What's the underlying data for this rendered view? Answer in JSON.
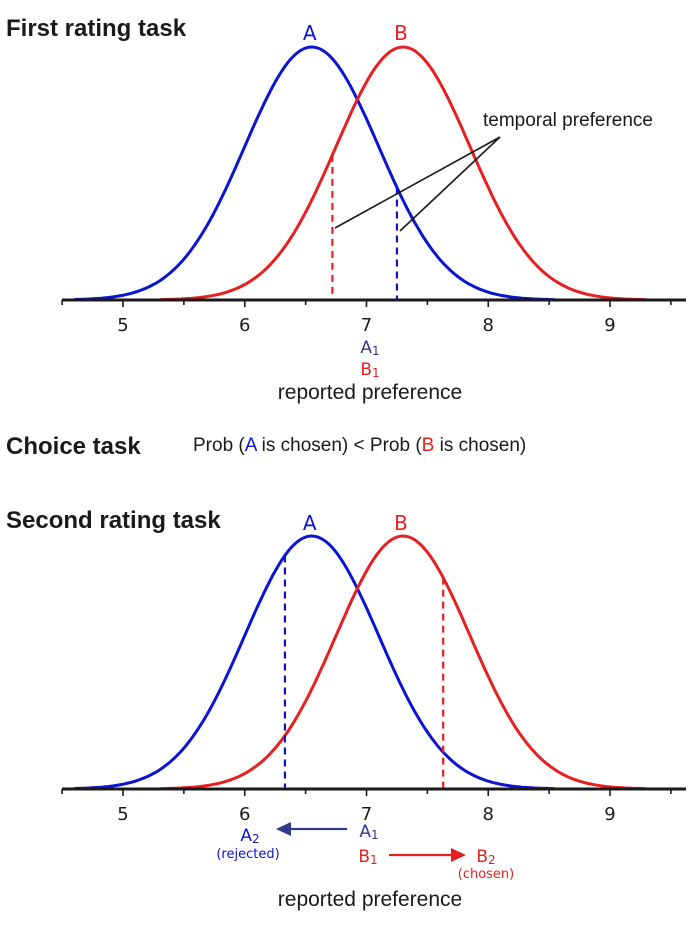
{
  "colors": {
    "a": "#0a14d2",
    "b": "#e62020",
    "a_dark": "#2e3a8c",
    "axis": "#1a1a1a"
  },
  "panels": [
    {
      "title": "First rating task",
      "curve_a": {
        "label": "A",
        "mean": 6.55,
        "sd": 0.55
      },
      "curve_b": {
        "label": "B",
        "mean": 7.3,
        "sd": 0.55
      },
      "markers": {
        "a": 7.25,
        "b": 6.72
      },
      "annotation": "temporal preference",
      "below": {
        "a1": "A",
        "a1_sub": "1",
        "b1": "B",
        "b1_sub": "1"
      },
      "xlabel": "reported preference"
    },
    {
      "title": "Second rating task",
      "curve_a": {
        "label": "A",
        "mean": 6.55,
        "sd": 0.55
      },
      "curve_b": {
        "label": "B",
        "mean": 7.3,
        "sd": 0.55
      },
      "markers": {
        "a": 6.33,
        "b": 7.63
      },
      "below": {
        "a2": "A",
        "a2_sub": "2",
        "a2_note": "(rejected)",
        "a1": "A",
        "a1_sub": "1",
        "b1": "B",
        "b1_sub": "1",
        "b2": "B",
        "b2_sub": "2",
        "b2_note": "(chosen)"
      },
      "xlabel": "reported preference"
    }
  ],
  "axis": {
    "ticks": [
      5,
      6,
      7,
      8,
      9
    ],
    "xlim": [
      4.55,
      9.35
    ]
  },
  "choice": {
    "title": "Choice task",
    "parts": [
      "Prob (",
      "A",
      " is chosen) < Prob (",
      "B",
      " is chosen)"
    ]
  }
}
